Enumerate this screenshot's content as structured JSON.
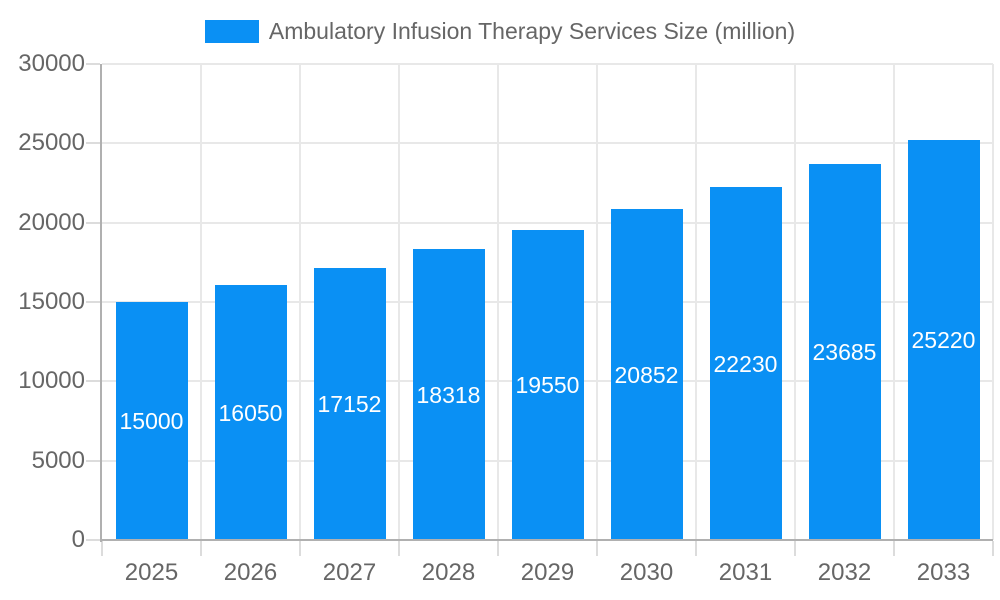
{
  "legend": {
    "label": "Ambulatory Infusion Therapy Services Size (million)"
  },
  "colors": {
    "bar": "#0a90f4",
    "grid": "#e8e8e8",
    "tick": "#dcdcdc",
    "axis": "#b0b0b0",
    "label_text": "#666666",
    "data_label_text": "#ffffff",
    "background": "#ffffff"
  },
  "chart_data": {
    "type": "bar",
    "title": "Ambulatory Infusion Therapy Services Size (million)",
    "legend_position": "top",
    "categories": [
      "2025",
      "2026",
      "2027",
      "2028",
      "2029",
      "2030",
      "2031",
      "2032",
      "2033"
    ],
    "values": [
      15000,
      16050,
      17152,
      18318,
      19550,
      20852,
      22230,
      23685,
      25220
    ],
    "data_labels": [
      "15000",
      "16050",
      "17152",
      "18318",
      "19550",
      "20852",
      "22230",
      "23685",
      "25220"
    ],
    "xlabel": "",
    "ylabel": "",
    "ylim": [
      0,
      30000
    ],
    "y_ticks": [
      0,
      5000,
      10000,
      15000,
      20000,
      25000,
      30000
    ],
    "grid": true,
    "data_labels_position": "inside-center"
  }
}
